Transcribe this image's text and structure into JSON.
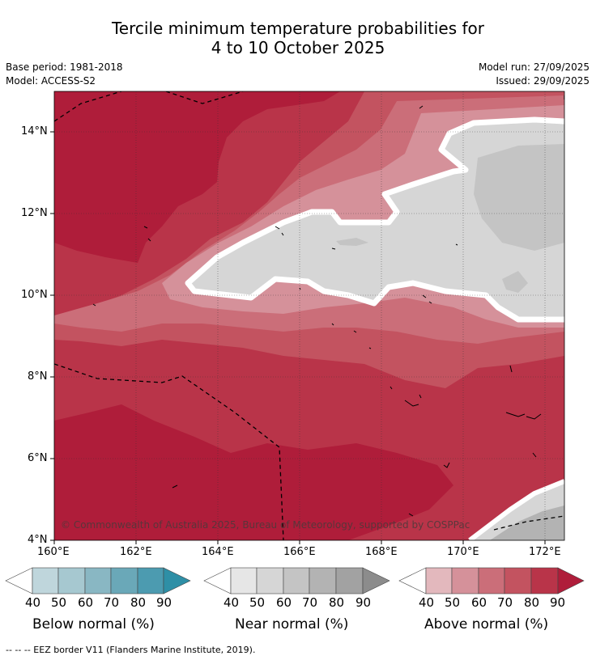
{
  "title": {
    "line1": "Tercile minimum temperature probabilities for",
    "line2": "4 to 10 October 2025"
  },
  "meta": {
    "base_period": "Base period: 1981-2018",
    "model": "Model: ACCESS-S2",
    "model_run": "Model run: 27/09/2025",
    "issued": "Issued: 29/09/2025"
  },
  "axes": {
    "lat_labels": [
      "14°N",
      "12°N",
      "10°N",
      "8°N",
      "6°N",
      "4°N"
    ],
    "lon_labels": [
      "160°E",
      "162°E",
      "164°E",
      "166°E",
      "168°E",
      "170°E",
      "172°E"
    ],
    "lat_range": [
      4,
      15
    ],
    "lon_range": [
      160,
      172.5
    ]
  },
  "copyright": "© Commonwealth of Australia 2025, Bureau of Meteorology, supported by COSPPac",
  "colorbars": [
    {
      "name": "below",
      "title": "Below normal (%)",
      "ticks": [
        "40",
        "50",
        "60",
        "70",
        "80",
        "90"
      ],
      "colors": [
        "#ffffff",
        "#bfd6dc",
        "#a6c8d0",
        "#89b7c3",
        "#6aa8b8",
        "#4c9bb0",
        "#2e8fa6"
      ]
    },
    {
      "name": "near",
      "title": "Near normal (%)",
      "ticks": [
        "40",
        "50",
        "60",
        "70",
        "80",
        "90"
      ],
      "colors": [
        "#ffffff",
        "#e6e6e6",
        "#d6d6d6",
        "#c4c4c4",
        "#b3b3b3",
        "#a2a2a2",
        "#8c8c8c"
      ]
    },
    {
      "name": "above",
      "title": "Above normal (%)",
      "ticks": [
        "40",
        "50",
        "60",
        "70",
        "80",
        "90"
      ],
      "colors": [
        "#ffffff",
        "#e3b8bd",
        "#d5919a",
        "#cb6e79",
        "#c35360",
        "#b93449",
        "#af1d3a"
      ]
    }
  ],
  "footer": "--  --  -- EEZ border V11 (Flanders Marine Institute, 2019)."
}
